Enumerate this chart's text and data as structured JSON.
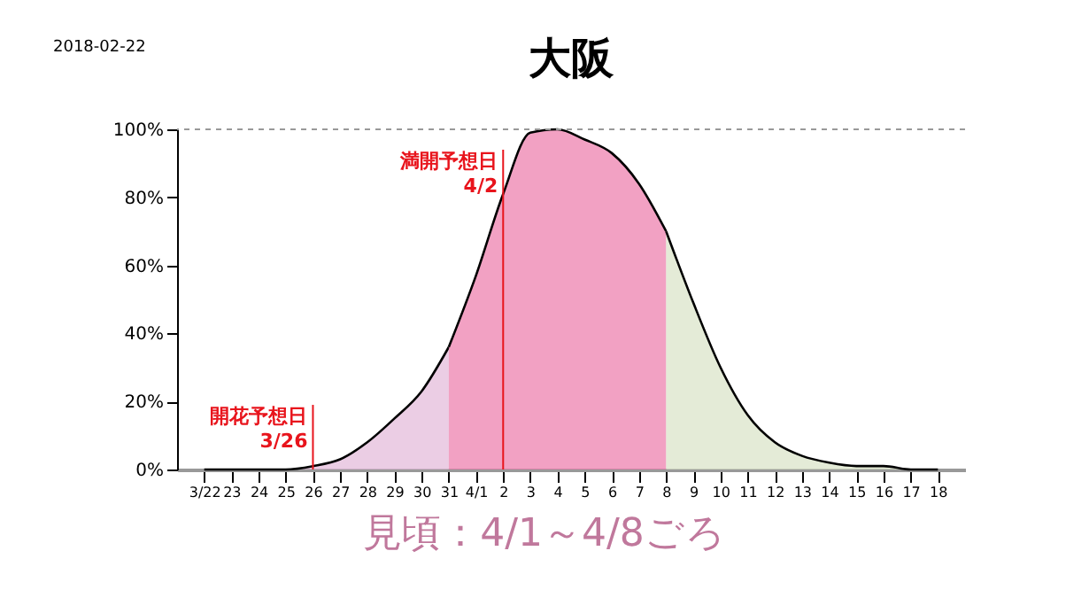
{
  "chart_data": {
    "type": "area",
    "title": "大阪",
    "categories": [
      "3/22",
      "23",
      "24",
      "25",
      "26",
      "27",
      "28",
      "29",
      "30",
      "31",
      "4/1",
      "2",
      "3",
      "4",
      "5",
      "6",
      "7",
      "8",
      "9",
      "10",
      "11",
      "12",
      "13",
      "14",
      "15",
      "16",
      "17",
      "18"
    ],
    "series": [
      {
        "color": "#e2b8d9",
        "values": [
          0,
          0,
          0,
          0,
          1,
          3,
          8,
          15,
          23,
          36,
          null,
          null,
          null,
          null,
          null,
          null,
          null,
          null,
          null,
          null,
          null,
          null,
          null,
          null,
          null,
          null,
          null,
          null
        ]
      },
      {
        "color": "#ec79a9",
        "values": [
          null,
          null,
          null,
          null,
          null,
          null,
          null,
          null,
          null,
          36,
          57,
          81,
          99,
          100,
          97,
          93,
          84,
          70,
          null,
          null,
          null,
          null,
          null,
          null,
          null,
          null,
          null,
          null
        ]
      },
      {
        "color": "#d9e3c6",
        "values": [
          null,
          null,
          null,
          null,
          null,
          null,
          null,
          null,
          null,
          null,
          null,
          null,
          null,
          null,
          null,
          null,
          null,
          70,
          49,
          30,
          16,
          8,
          4,
          2,
          1,
          1,
          0,
          0
        ]
      }
    ],
    "ylim": [
      0,
      100
    ],
    "yticks": [
      {
        "value": 0,
        "label": "0%"
      },
      {
        "value": 20,
        "label": "20%"
      },
      {
        "value": 40,
        "label": "40%"
      },
      {
        "value": 60,
        "label": "60%"
      },
      {
        "value": 80,
        "label": "80%"
      },
      {
        "value": 100,
        "label": "100%"
      }
    ],
    "ref_lines": [
      {
        "axis": "y",
        "value": 100,
        "color": "#999999",
        "line_style": "dashed"
      },
      {
        "axis": "x",
        "value": "26",
        "label": "開花予想日\n3/26",
        "color": "#e8141c"
      },
      {
        "axis": "x",
        "value": "2",
        "label": "満開予想日\n4/2",
        "color": "#e8141c"
      }
    ],
    "annotations": [
      "2018-02-22",
      "見頃：4/1～4/8ごろ"
    ]
  }
}
